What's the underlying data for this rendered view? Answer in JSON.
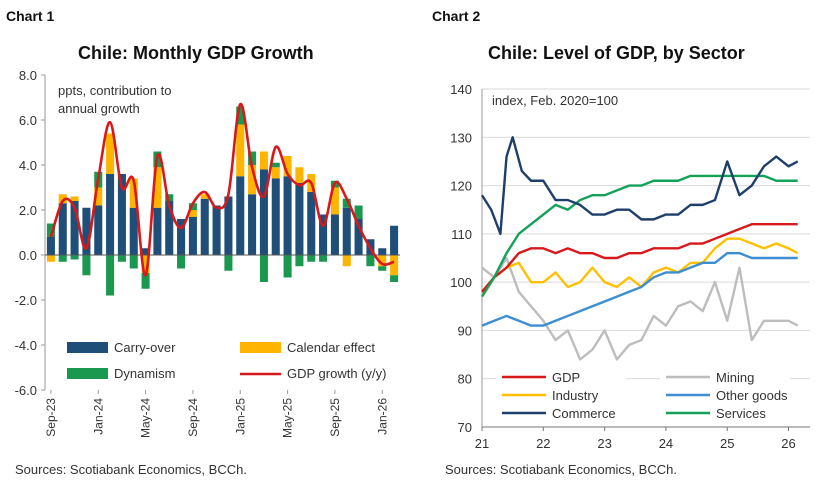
{
  "charts": [
    {
      "label": "Chart 1",
      "title": "Chile: Monthly GDP Growth",
      "annotation": "ppts, contribution to annual growth",
      "source": "Sources: Scotiabank Economics, BCCh."
    },
    {
      "label": "Chart 2",
      "title": "Chile: Level of GDP, by Sector",
      "annotation": "index, Feb. 2020=100",
      "source": "Sources: Scotiabank Economics, BCCh."
    }
  ],
  "colors": {
    "carry_over": "#1f4e79",
    "calendar": "#ffb400",
    "dynamism": "#1a9850",
    "gdp_line": "#d7191c",
    "mining": "#bdbdbd",
    "industry": "#ffc000",
    "other_goods": "#3d8ed1",
    "commerce": "#1f3f6b",
    "services": "#14a25a",
    "axis": "#999999"
  },
  "chart_data": [
    {
      "type": "bar",
      "stacked": true,
      "title": "Chile: Monthly GDP Growth",
      "ylabel": "ppts, contribution to annual growth",
      "ylim": [
        -6.0,
        8.0
      ],
      "yticks": [
        "8.0",
        "6.0",
        "4.0",
        "2.0",
        "0.0",
        "-2.0",
        "-4.0",
        "-6.0"
      ],
      "ytick_values": [
        8,
        6,
        4,
        2,
        0,
        -2,
        -4,
        -6
      ],
      "categories": [
        "Sep-23",
        "Oct-23",
        "Nov-23",
        "Dec-23",
        "Jan-24",
        "Feb-24",
        "Mar-24",
        "Apr-24",
        "May-24",
        "Jun-24",
        "Jul-24",
        "Aug-24",
        "Sep-24",
        "Oct-24",
        "Nov-24",
        "Dec-24",
        "Jan-25",
        "Feb-25",
        "Mar-25",
        "Apr-25",
        "May-25",
        "Jun-25",
        "Jul-25",
        "Aug-25",
        "Sep-25",
        "Oct-25",
        "Nov-25",
        "Dec-25",
        "Jan-26",
        "Feb-26"
      ],
      "xtick_labels": [
        "Sep-23",
        "Jan-24",
        "May-24",
        "Sep-24",
        "Jan-25",
        "May-25",
        "Sep-25",
        "Jan-26"
      ],
      "xtick_index": [
        0,
        4,
        8,
        12,
        16,
        20,
        24,
        28
      ],
      "series": [
        {
          "name": "Carry-over",
          "values": [
            0.8,
            2.3,
            2.4,
            2.1,
            2.2,
            3.6,
            3.6,
            2.1,
            0.3,
            2.1,
            2.4,
            1.6,
            1.7,
            2.5,
            2.2,
            2.6,
            3.5,
            2.7,
            3.8,
            3.4,
            3.5,
            3.2,
            2.8,
            1.8,
            1.8,
            2.1,
            1.6,
            0.7,
            0.3,
            1.3
          ]
        },
        {
          "name": "Calendar effect",
          "values": [
            -0.3,
            0.4,
            0.2,
            0.0,
            0.8,
            1.8,
            0.0,
            1.3,
            -0.8,
            1.8,
            0.0,
            0.0,
            0.3,
            0.2,
            0.0,
            0.0,
            2.3,
            1.3,
            0.8,
            0.5,
            0.9,
            0.7,
            0.8,
            0.0,
            1.2,
            -0.5,
            0.0,
            0.0,
            -0.5,
            -0.9
          ]
        },
        {
          "name": "Dynamism",
          "values": [
            0.6,
            -0.3,
            -0.2,
            -0.9,
            0.7,
            -1.8,
            -0.3,
            -0.6,
            -0.7,
            0.7,
            0.3,
            -0.6,
            0.3,
            0.0,
            0.0,
            -0.7,
            0.8,
            0.6,
            -1.2,
            0.2,
            -1.0,
            -0.5,
            -0.3,
            -0.3,
            0.3,
            0.4,
            0.6,
            -0.5,
            -0.2,
            -0.3
          ]
        },
        {
          "name": "GDP growth (y/y)",
          "type": "line",
          "values": [
            0.8,
            2.4,
            2.1,
            0.3,
            3.4,
            5.9,
            3.0,
            3.3,
            -0.9,
            4.4,
            2.2,
            1.2,
            2.3,
            2.8,
            2.1,
            2.7,
            6.7,
            3.9,
            2.6,
            4.8,
            3.6,
            3.1,
            3.2,
            1.3,
            3.2,
            2.5,
            1.3,
            0.3,
            -0.4,
            -0.3
          ]
        }
      ],
      "legend": [
        "Carry-over",
        "Calendar effect",
        "Dynamism",
        "GDP growth (y/y)"
      ],
      "legend_position": "bottom"
    },
    {
      "type": "line",
      "title": "Chile: Level of GDP, by Sector",
      "ylabel": "index, Feb. 2020=100",
      "ylim": [
        70,
        140
      ],
      "yticks": [
        "140",
        "130",
        "120",
        "110",
        "100",
        "90",
        "80",
        "70"
      ],
      "ytick_values": [
        140,
        130,
        120,
        110,
        100,
        90,
        80,
        70
      ],
      "xlim": [
        2021,
        2026.35
      ],
      "xticks": [
        "21",
        "22",
        "23",
        "24",
        "25",
        "26"
      ],
      "xtick_values": [
        2021,
        2022,
        2023,
        2024,
        2025,
        2026
      ],
      "grid": "horizontal",
      "series": [
        {
          "name": "GDP",
          "x": [
            2021.0,
            2021.2,
            2021.4,
            2021.6,
            2021.8,
            2022.0,
            2022.2,
            2022.4,
            2022.6,
            2022.8,
            2023.0,
            2023.2,
            2023.4,
            2023.6,
            2023.8,
            2024.0,
            2024.2,
            2024.4,
            2024.6,
            2024.8,
            2025.0,
            2025.2,
            2025.4,
            2025.6,
            2025.8,
            2026.0,
            2026.15
          ],
          "values": [
            98,
            101,
            103,
            106,
            107,
            107,
            106,
            107,
            106,
            106,
            105,
            105,
            106,
            106,
            107,
            107,
            107,
            108,
            108,
            109,
            110,
            111,
            112,
            112,
            112,
            112,
            112
          ]
        },
        {
          "name": "Mining",
          "x": [
            2021.0,
            2021.2,
            2021.4,
            2021.6,
            2021.8,
            2022.0,
            2022.2,
            2022.4,
            2022.6,
            2022.8,
            2023.0,
            2023.2,
            2023.4,
            2023.6,
            2023.8,
            2024.0,
            2024.2,
            2024.4,
            2024.6,
            2024.8,
            2025.0,
            2025.2,
            2025.4,
            2025.6,
            2025.8,
            2026.0,
            2026.15
          ],
          "values": [
            103,
            101,
            105,
            98,
            95,
            92,
            88,
            90,
            84,
            86,
            90,
            84,
            87,
            88,
            93,
            91,
            95,
            96,
            94,
            100,
            92,
            103,
            88,
            92,
            92,
            92,
            91
          ]
        },
        {
          "name": "Industry",
          "x": [
            2021.0,
            2021.2,
            2021.4,
            2021.6,
            2021.8,
            2022.0,
            2022.2,
            2022.4,
            2022.6,
            2022.8,
            2023.0,
            2023.2,
            2023.4,
            2023.6,
            2023.8,
            2024.0,
            2024.2,
            2024.4,
            2024.6,
            2024.8,
            2025.0,
            2025.2,
            2025.4,
            2025.6,
            2025.8,
            2026.0,
            2026.15
          ],
          "values": [
            97,
            101,
            103,
            104,
            100,
            100,
            102,
            99,
            100,
            103,
            100,
            99,
            101,
            99,
            102,
            103,
            102,
            104,
            104,
            107,
            109,
            109,
            108,
            107,
            108,
            107,
            106
          ]
        },
        {
          "name": "Other goods",
          "x": [
            2021.0,
            2021.2,
            2021.4,
            2021.6,
            2021.8,
            2022.0,
            2022.2,
            2022.4,
            2022.6,
            2022.8,
            2023.0,
            2023.2,
            2023.4,
            2023.6,
            2023.8,
            2024.0,
            2024.2,
            2024.4,
            2024.6,
            2024.8,
            2025.0,
            2025.2,
            2025.4,
            2025.6,
            2025.8,
            2026.0,
            2026.15
          ],
          "values": [
            91,
            92,
            93,
            92,
            91,
            91,
            92,
            93,
            94,
            95,
            96,
            97,
            98,
            99,
            101,
            102,
            102,
            103,
            104,
            104,
            106,
            106,
            105,
            105,
            105,
            105,
            105
          ]
        },
        {
          "name": "Commerce",
          "x": [
            2021.0,
            2021.15,
            2021.3,
            2021.4,
            2021.5,
            2021.65,
            2021.8,
            2022.0,
            2022.2,
            2022.4,
            2022.6,
            2022.8,
            2023.0,
            2023.2,
            2023.4,
            2023.6,
            2023.8,
            2024.0,
            2024.2,
            2024.4,
            2024.6,
            2024.8,
            2025.0,
            2025.2,
            2025.4,
            2025.6,
            2025.8,
            2026.0,
            2026.15
          ],
          "values": [
            118,
            115,
            110,
            126,
            130,
            123,
            121,
            121,
            117,
            117,
            116,
            114,
            114,
            115,
            115,
            113,
            113,
            114,
            114,
            116,
            116,
            117,
            125,
            118,
            120,
            124,
            126,
            124,
            125
          ]
        },
        {
          "name": "Services",
          "x": [
            2021.0,
            2021.2,
            2021.4,
            2021.6,
            2021.8,
            2022.0,
            2022.2,
            2022.4,
            2022.6,
            2022.8,
            2023.0,
            2023.2,
            2023.4,
            2023.6,
            2023.8,
            2024.0,
            2024.2,
            2024.4,
            2024.6,
            2024.8,
            2025.0,
            2025.2,
            2025.4,
            2025.6,
            2025.8,
            2026.0,
            2026.15
          ],
          "values": [
            97,
            101,
            106,
            110,
            112,
            114,
            116,
            115,
            117,
            118,
            118,
            119,
            120,
            120,
            121,
            121,
            121,
            122,
            122,
            122,
            122,
            122,
            122,
            122,
            121,
            121,
            121
          ]
        }
      ],
      "legend": [
        "GDP",
        "Mining",
        "Industry",
        "Other goods",
        "Commerce",
        "Services"
      ],
      "legend_position": "bottom"
    }
  ]
}
